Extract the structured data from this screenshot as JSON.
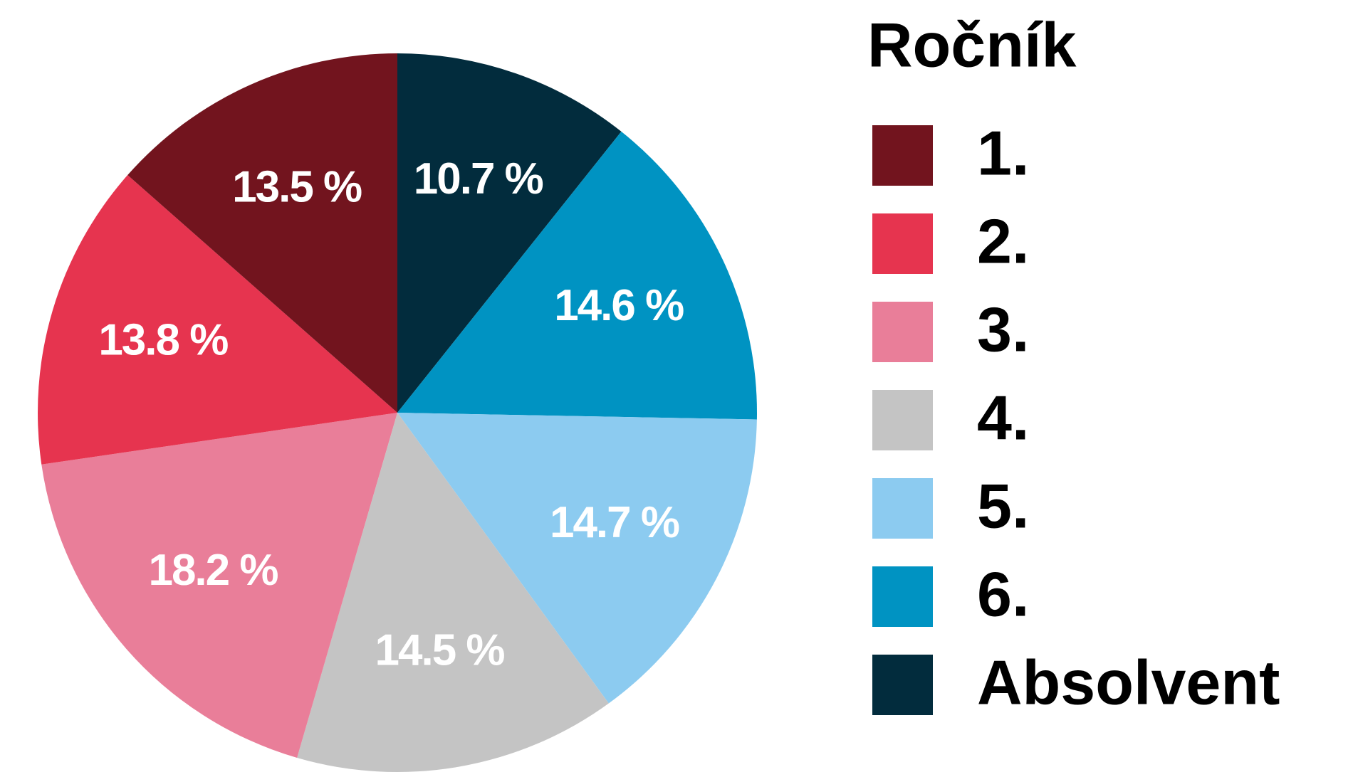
{
  "chart_data": {
    "type": "pie",
    "legend_title": "Ročník",
    "categories": [
      "1.",
      "2.",
      "3.",
      "4.",
      "5.",
      "6.",
      "Absolvent"
    ],
    "values": [
      13.5,
      13.8,
      18.2,
      14.5,
      14.7,
      14.6,
      10.7
    ],
    "value_labels": [
      "13.5 %",
      "13.8 %",
      "18.2 %",
      "14.5 %",
      "14.7 %",
      "14.6 %",
      "10.7 %"
    ],
    "colors": [
      "#72141e",
      "#e6344f",
      "#e97e99",
      "#c4c4c4",
      "#8ccbf0",
      "#0093c2",
      "#022c3d"
    ]
  }
}
